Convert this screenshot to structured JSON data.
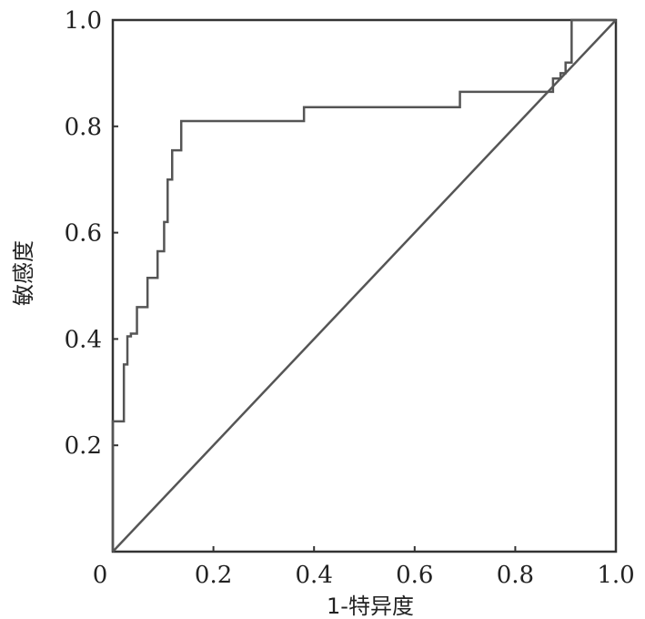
{
  "chart_data": {
    "type": "line",
    "title": "",
    "xlabel": "1-特异度",
    "ylabel": "敏感度",
    "xlim": [
      0,
      1
    ],
    "ylim": [
      0,
      1
    ],
    "grid": false,
    "legend": "none",
    "x_ticks": [
      {
        "value": 0.0,
        "label": "0"
      },
      {
        "value": 0.2,
        "label": "0.2"
      },
      {
        "value": 0.4,
        "label": "0.4"
      },
      {
        "value": 0.6,
        "label": "0.6"
      },
      {
        "value": 0.8,
        "label": "0.8"
      },
      {
        "value": 1.0,
        "label": "1.0"
      }
    ],
    "y_ticks": [
      {
        "value": 0.2,
        "label": "0.2"
      },
      {
        "value": 0.4,
        "label": "0.4"
      },
      {
        "value": 0.6,
        "label": "0.6"
      },
      {
        "value": 0.8,
        "label": "0.8"
      },
      {
        "value": 1.0,
        "label": "1.0"
      }
    ],
    "series": [
      {
        "kind": "roc",
        "x": [
          0.0,
          0.0,
          0.022,
          0.022,
          0.029,
          0.029,
          0.036,
          0.036,
          0.048,
          0.048,
          0.069,
          0.069,
          0.089,
          0.089,
          0.102,
          0.102,
          0.109,
          0.109,
          0.118,
          0.118,
          0.136,
          0.136,
          0.155,
          0.155,
          0.38,
          0.38,
          0.69,
          0.69,
          0.875,
          0.875,
          0.89,
          0.89,
          0.9,
          0.9,
          0.912,
          0.912,
          1.0
        ],
        "y": [
          0.0,
          0.245,
          0.245,
          0.352,
          0.352,
          0.405,
          0.405,
          0.41,
          0.41,
          0.46,
          0.46,
          0.515,
          0.515,
          0.565,
          0.565,
          0.62,
          0.62,
          0.7,
          0.7,
          0.755,
          0.755,
          0.81,
          0.81,
          0.81,
          0.81,
          0.836,
          0.836,
          0.865,
          0.865,
          0.89,
          0.89,
          0.9,
          0.9,
          0.92,
          0.92,
          1.0,
          1.0
        ],
        "color": "#555555"
      },
      {
        "kind": "reference",
        "x": [
          0,
          1
        ],
        "y": [
          0,
          1
        ],
        "color": "#555555"
      }
    ]
  }
}
